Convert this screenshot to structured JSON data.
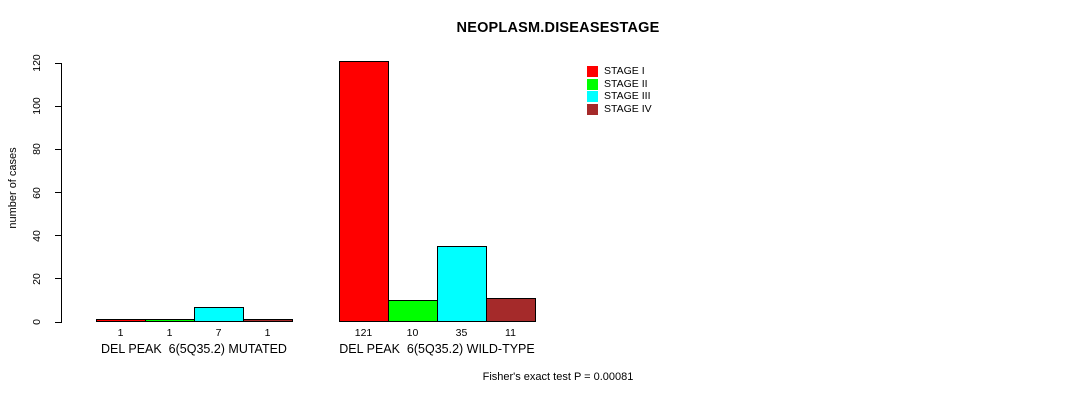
{
  "chart_data": {
    "type": "bar",
    "title": "NEOPLASM.DISEASESTAGE",
    "ylabel": "number of cases",
    "ylim": [
      0,
      120
    ],
    "yticks": [
      0,
      20,
      40,
      60,
      80,
      100,
      120
    ],
    "grid": false,
    "legend_position": "top-right",
    "categories": [
      "DEL PEAK  6(5Q35.2) MUTATED",
      "DEL PEAK  6(5Q35.2) WILD-TYPE"
    ],
    "series": [
      {
        "name": "STAGE I",
        "color": "#FF0000",
        "values": [
          1,
          121
        ]
      },
      {
        "name": "STAGE II",
        "color": "#00FF00",
        "values": [
          1,
          10
        ]
      },
      {
        "name": "STAGE III",
        "color": "#00FFFF",
        "values": [
          7,
          35
        ]
      },
      {
        "name": "STAGE IV",
        "color": "#A52A2A",
        "values": [
          1,
          11
        ]
      }
    ],
    "bar_value_labels": [
      [
        "1",
        "1",
        "7",
        "1"
      ],
      [
        "121",
        "10",
        "35",
        "11"
      ]
    ],
    "annotation": "Fisher's exact test P = 0.00081"
  },
  "colors": {
    "background": "#FFFFFF",
    "axis": "#000000",
    "text": "#000000",
    "bar_border": "#000000"
  }
}
